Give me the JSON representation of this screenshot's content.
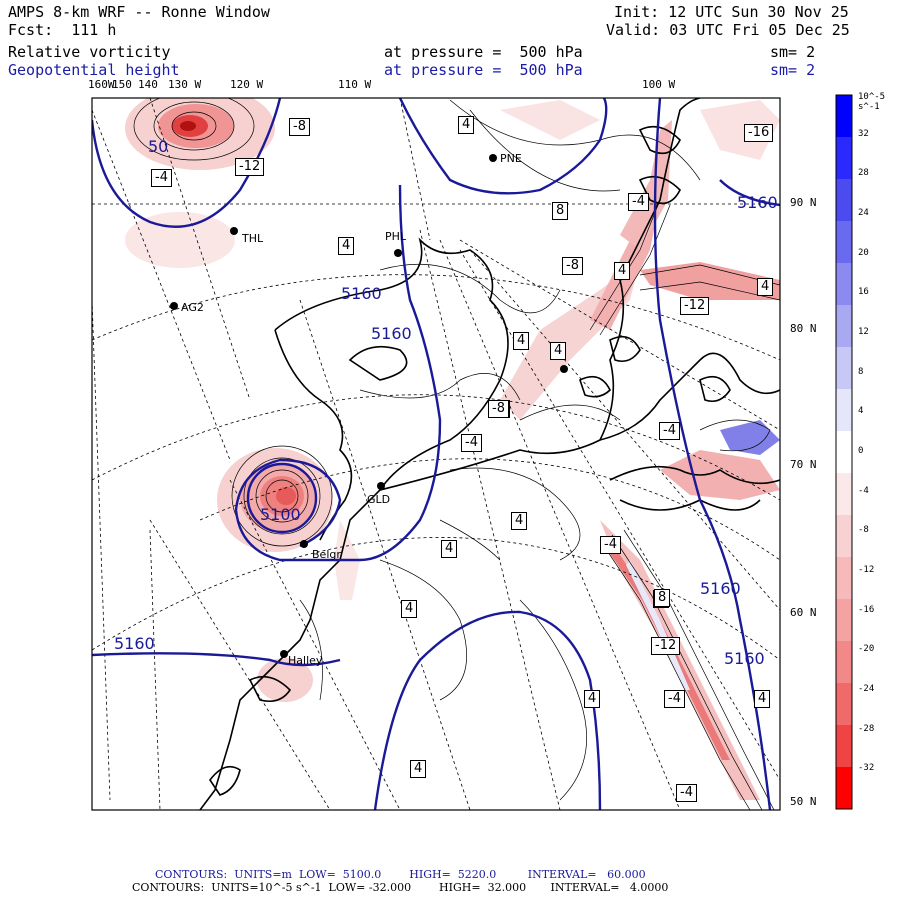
{
  "header": {
    "title": "AMPS 8-km WRF -- Ronne Window",
    "forecast": "Fcst:  111 h",
    "init": "Init: 12 UTC Sun 30 Nov 25",
    "valid": "Valid: 03 UTC Fri 05 Dec 25",
    "field1": {
      "name": "Relative vorticity",
      "level": "at pressure =  500 hPa",
      "smooth": "sm= 2"
    },
    "field2": {
      "name": "Geopotential height",
      "level": "at pressure =  500 hPa",
      "smooth": "sm= 2"
    }
  },
  "lon_labels": [
    "160W",
    "150",
    "140",
    "130 W",
    "120 W",
    "110 W",
    "100 W"
  ],
  "lat_labels": [
    "90 N",
    "80 N",
    "70 N",
    "60 N",
    "50 N"
  ],
  "stations": [
    "PNE",
    "THL",
    "PHL",
    "AG2",
    "GLD",
    "Belgr",
    "Halley"
  ],
  "height_labels": [
    "5160",
    "5160",
    "5160",
    "5160",
    "5160",
    "5160",
    "50",
    "5100"
  ],
  "vorticity_labels": [
    "4",
    "-4",
    "-8",
    "-12",
    "-16",
    "8",
    "-4",
    "4",
    "-8",
    "4",
    "4",
    "-8",
    "-4",
    "4",
    "4",
    "4",
    "4",
    "4",
    "-12",
    "-4",
    "-8",
    "4",
    "8",
    "4",
    "-4",
    "-12",
    "-4",
    "4",
    "-4",
    "4"
  ],
  "colorbar": {
    "unit": "10^-5 s^-1",
    "levels": [
      "32",
      "28",
      "24",
      "20",
      "16",
      "12",
      "8",
      "4",
      "0",
      "-4",
      "-8",
      "-12",
      "-16",
      "-20",
      "-24",
      "-28",
      "-32"
    ],
    "colors": [
      "#0000ff",
      "#2a2aff",
      "#4b4bf0",
      "#6a6af0",
      "#8a8af0",
      "#a9a9f2",
      "#c8c8f6",
      "#e6e6fa",
      "#ffffff",
      "#fbe8e8",
      "#f8d2d2",
      "#f6baba",
      "#f4a2a2",
      "#f28888",
      "#f06a6a",
      "#f04444",
      "#ff0000"
    ]
  },
  "footer": {
    "line1": "CONTOURS:  UNITS=m  LOW=  5100.0        HIGH=  5220.0         INTERVAL=   60.000",
    "line2": "CONTOURS:  UNITS=10^-5 s^-1  LOW= -32.000        HIGH=  32.000       INTERVAL=   4.0000"
  }
}
